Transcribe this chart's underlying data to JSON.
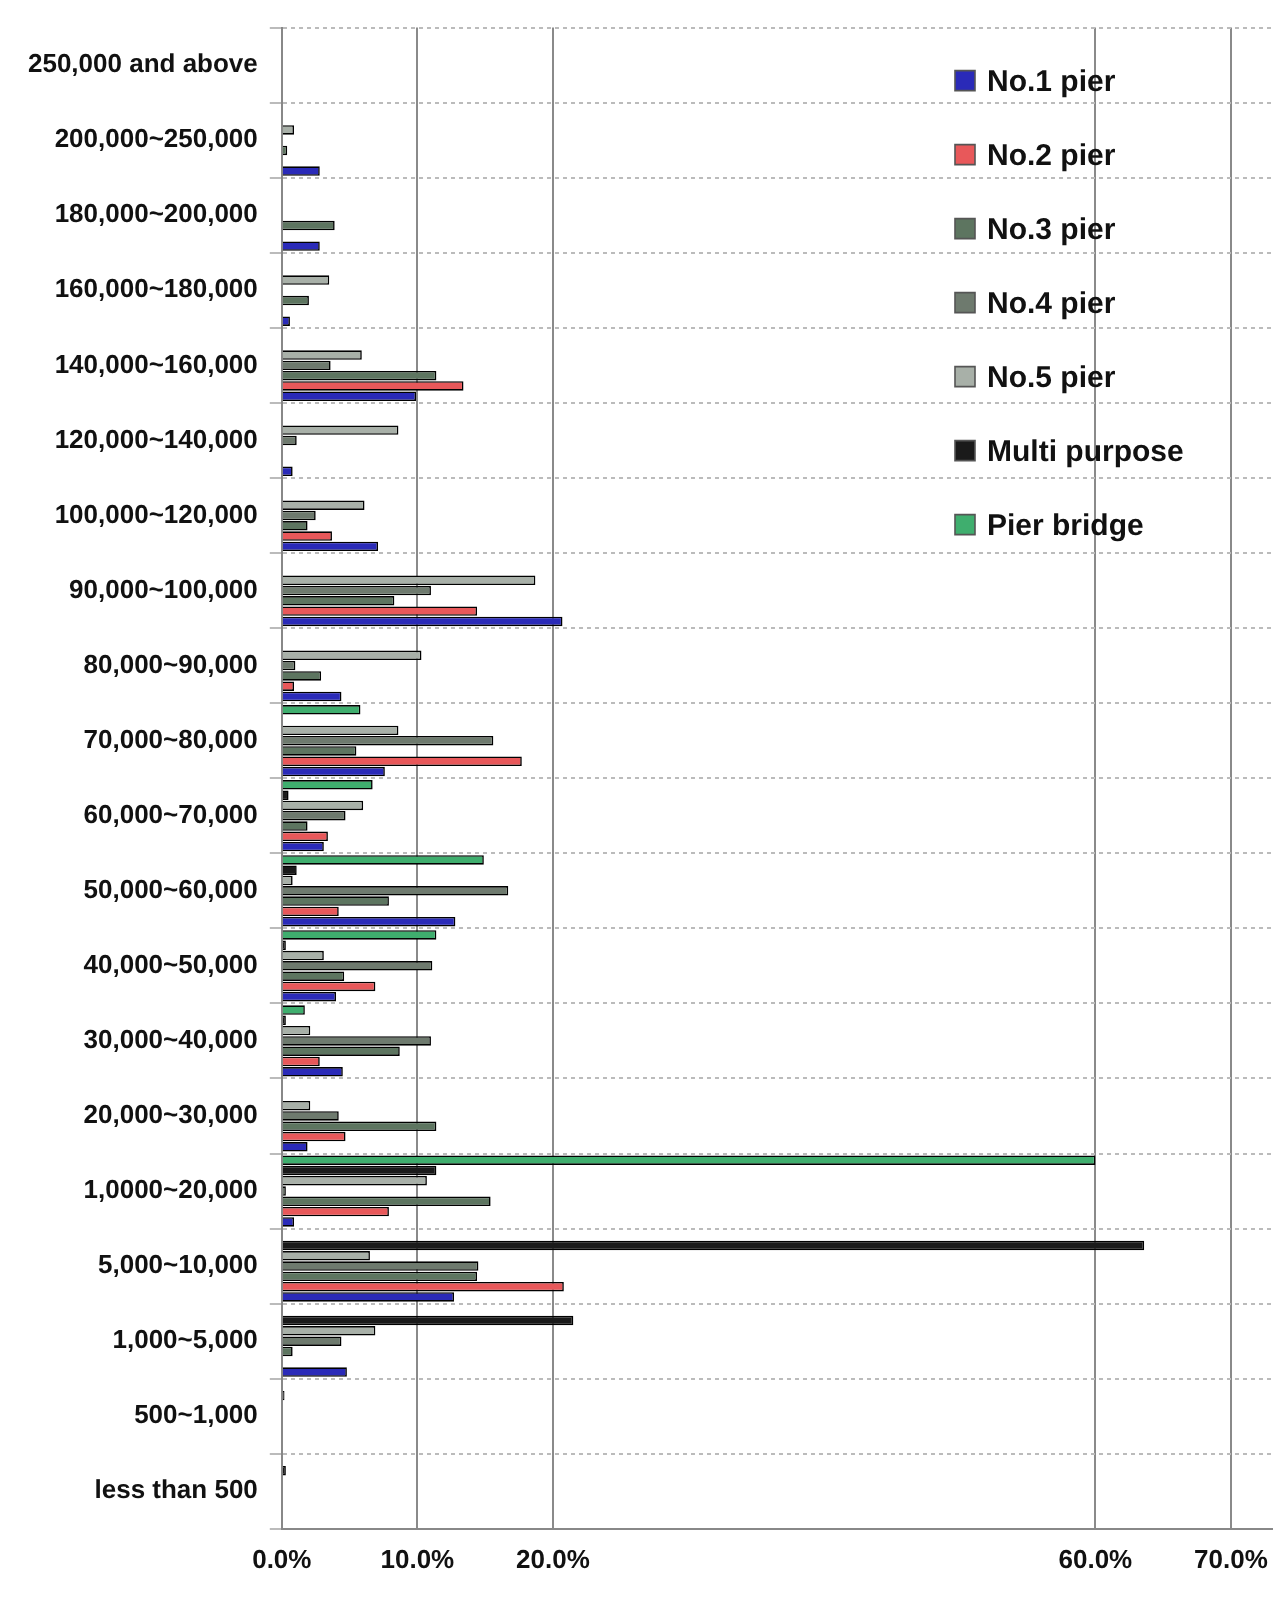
{
  "chart_data": {
    "type": "bar",
    "orientation": "horizontal",
    "categories": [
      "250,000 and above",
      "200,000~250,000",
      "180,000~200,000",
      "160,000~180,000",
      "140,000~160,000",
      "120,000~140,000",
      "100,000~120,000",
      "90,000~100,000",
      "80,000~90,000",
      "70,000~80,000",
      "60,000~70,000",
      "50,000~60,000",
      "40,000~50,000",
      "30,000~40,000",
      "20,000~30,000",
      "1,0000~20,000",
      "5,000~10,000",
      "1,000~5,000",
      "500~1,000",
      "less than 500"
    ],
    "series": [
      {
        "name": "No.1 pier",
        "color": "#2a2ab8",
        "values": [
          0,
          2.8,
          2.8,
          0.6,
          9.9,
          0.8,
          7.1,
          20.7,
          4.4,
          7.6,
          3.1,
          12.8,
          4.0,
          4.5,
          1.9,
          0.9,
          12.7,
          4.8,
          0,
          0
        ]
      },
      {
        "name": "No.2 pier",
        "color": "#e8585a",
        "values": [
          0,
          0,
          0,
          0,
          13.4,
          0,
          3.7,
          14.4,
          0.9,
          17.7,
          3.4,
          4.2,
          6.9,
          2.8,
          4.7,
          7.9,
          20.8,
          null,
          0,
          0
        ]
      },
      {
        "name": "No.3 pier",
        "color": "#5d7560",
        "values": [
          0,
          0.4,
          3.9,
          2.0,
          11.4,
          0,
          1.9,
          8.3,
          2.9,
          5.5,
          1.9,
          7.9,
          4.6,
          8.7,
          11.4,
          15.4,
          14.4,
          0.8,
          0,
          0
        ]
      },
      {
        "name": "No.4 pier",
        "color": "#6e7a6e",
        "values": [
          0,
          0,
          0,
          0,
          3.6,
          1.1,
          2.5,
          11.0,
          1.0,
          15.6,
          4.7,
          16.7,
          11.1,
          11.0,
          4.2,
          0.3,
          14.5,
          4.4,
          0,
          0
        ]
      },
      {
        "name": "No.5 pier",
        "color": "#a8b0a8",
        "values": [
          0,
          0.9,
          0,
          3.5,
          5.9,
          8.6,
          6.1,
          18.7,
          10.3,
          8.6,
          6.0,
          0.8,
          3.1,
          2.1,
          2.1,
          10.7,
          6.5,
          6.9,
          0,
          0
        ]
      },
      {
        "name": "Multi purpose",
        "color": "#1a1a1a",
        "values": [
          0,
          0,
          0,
          0,
          0,
          0,
          0,
          0,
          0,
          0,
          0.5,
          1.1,
          0.3,
          0.3,
          0,
          11.4,
          63.6,
          21.5,
          0.2,
          0.3
        ]
      },
      {
        "name": "Pier bridge",
        "color": "#3fae6e",
        "values": [
          0,
          0,
          0,
          0,
          0,
          0,
          0,
          0,
          0,
          5.8,
          6.7,
          14.9,
          11.4,
          1.7,
          0,
          60.0,
          0,
          0,
          0,
          0
        ]
      }
    ],
    "xlim": [
      0,
      73
    ],
    "xticks": [
      {
        "value": 0,
        "label": "0.0%"
      },
      {
        "value": 10,
        "label": "10.0%"
      },
      {
        "value": 20,
        "label": "20.0%"
      },
      {
        "value": 60,
        "label": "60.0%"
      },
      {
        "value": 70,
        "label": "70.0%"
      }
    ],
    "grid": true,
    "legend": "top right"
  }
}
